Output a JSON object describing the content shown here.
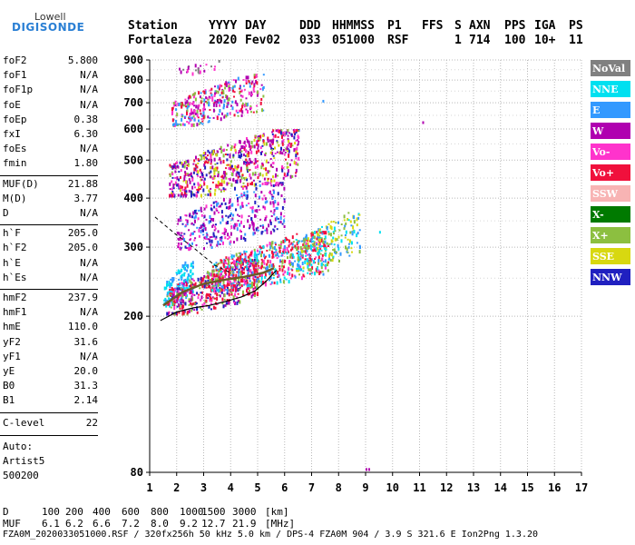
{
  "logo": {
    "line1": "Lowell",
    "line2": "DIGISONDE"
  },
  "header": {
    "row1": [
      "Station",
      "YYYY",
      "DAY",
      "DDD",
      "HHMMSS",
      "P1",
      "FFS",
      "S",
      "AXN",
      "PPS",
      "IGA",
      "PS"
    ],
    "row2": [
      "Fortaleza",
      "2020",
      "Fev02",
      "033",
      "051000",
      "RSF",
      "",
      "1",
      "714",
      "100",
      "10+",
      "11"
    ]
  },
  "params_group1": [
    {
      "name": "foF2",
      "value": "5.800"
    },
    {
      "name": "foF1",
      "value": "N/A"
    },
    {
      "name": "foF1p",
      "value": "N/A"
    },
    {
      "name": "foE",
      "value": "N/A"
    },
    {
      "name": "foEp",
      "value": "0.38"
    },
    {
      "name": "fxI",
      "value": "6.30"
    },
    {
      "name": "foEs",
      "value": "N/A"
    },
    {
      "name": "fmin",
      "value": "1.80"
    }
  ],
  "params_group2": [
    {
      "name": "MUF(D)",
      "value": "21.88"
    },
    {
      "name": "M(D)",
      "value": "3.77"
    },
    {
      "name": "D",
      "value": "N/A"
    }
  ],
  "params_group3": [
    {
      "name": "h`F",
      "value": "205.0"
    },
    {
      "name": "h`F2",
      "value": "205.0"
    },
    {
      "name": "h`E",
      "value": "N/A"
    },
    {
      "name": "h`Es",
      "value": "N/A"
    }
  ],
  "params_group4": [
    {
      "name": "hmF2",
      "value": "237.9"
    },
    {
      "name": "hmF1",
      "value": "N/A"
    },
    {
      "name": "hmE",
      "value": "110.0"
    },
    {
      "name": "yF2",
      "value": "31.6"
    },
    {
      "name": "yF1",
      "value": "N/A"
    },
    {
      "name": "yE",
      "value": "20.0"
    },
    {
      "name": "B0",
      "value": "31.3"
    },
    {
      "name": "B1",
      "value": "2.14"
    }
  ],
  "clevel": {
    "name": "C-level",
    "value": "22"
  },
  "auto": {
    "line1": "Auto:",
    "line2": "Artist5",
    "line3": "500200"
  },
  "legend": [
    {
      "label": "NoVal",
      "color": "#808080",
      "text_color": "#ffffff"
    },
    {
      "label": "NNE",
      "color": "#00e0f0",
      "text_color": "#ffffff"
    },
    {
      "label": "E",
      "color": "#3399ff",
      "text_color": "#ffffff"
    },
    {
      "label": "W",
      "color": "#b000b0",
      "text_color": "#ffffff"
    },
    {
      "label": "Vo-",
      "color": "#ff33cc",
      "text_color": "#ffffff"
    },
    {
      "label": "Vo+",
      "color": "#f0103c",
      "text_color": "#ffffff"
    },
    {
      "label": "SSW",
      "color": "#f8b4b4",
      "text_color": "#ffffff"
    },
    {
      "label": "X-",
      "color": "#007a00",
      "text_color": "#ffffff"
    },
    {
      "label": "X+",
      "color": "#8cbf40",
      "text_color": "#ffffff"
    },
    {
      "label": "SSE",
      "color": "#d8d810",
      "text_color": "#ffffff"
    },
    {
      "label": "NNW",
      "color": "#2020c0",
      "text_color": "#ffffff"
    }
  ],
  "bottom": {
    "d_label": "D",
    "d_values": [
      "100",
      "200",
      "400",
      "600",
      "800",
      "1000",
      "1500",
      "3000",
      "[km]"
    ],
    "muf_label": "MUF",
    "muf_values": [
      "6.1",
      "6.2",
      "6.6",
      "7.2",
      "8.0",
      "9.2",
      "12.7",
      "21.9",
      "[MHz]"
    ],
    "footer": "FZA0M_2020033051000.RSF / 320fx256h 50 kHz 5.0 km / DPS-4 FZA0M 904 / 3.9 S 321.6 E   Ion2Png 1.3.20"
  },
  "chart_data": {
    "type": "scatter",
    "x_ticks": [
      "1",
      "2",
      "3",
      "4",
      "5",
      "6",
      "7",
      "8",
      "9",
      "10",
      "11",
      "12",
      "13",
      "14",
      "15",
      "16",
      "17"
    ],
    "y_ticks": [
      "80",
      "200",
      "300",
      "400",
      "500",
      "600",
      "700",
      "800",
      "900"
    ],
    "xlim": [
      1,
      17
    ],
    "y_scale": "log",
    "ylim": [
      80,
      900
    ],
    "grid": true,
    "legend_placement": "right",
    "clusters": [
      {
        "name": "E",
        "f": [
          1.5,
          2.6
        ],
        "h": [
          215,
          280
        ],
        "n": 140,
        "colors": [
          "#00e0f0",
          "#3399ff"
        ]
      },
      {
        "name": "Vo+",
        "f": [
          1.6,
          5.0
        ],
        "h": [
          205,
          280
        ],
        "n": 460,
        "colors": [
          "#f0103c",
          "#f0103c",
          "#ff33cc",
          "#b000b0",
          "#2020c0",
          "#8cbf40"
        ]
      },
      {
        "name": "Vo+",
        "f": [
          3.2,
          7.6
        ],
        "h": [
          235,
          330
        ],
        "n": 620,
        "colors": [
          "#f0103c",
          "#f0103c",
          "#ff33cc",
          "#3399ff",
          "#00e0f0",
          "#8cbf40"
        ]
      },
      {
        "name": "SSE",
        "f": [
          6.4,
          8.8
        ],
        "h": [
          265,
          370
        ],
        "n": 180,
        "colors": [
          "#d8d810",
          "#8cbf40",
          "#00e0f0",
          "#3399ff"
        ]
      },
      {
        "name": "W",
        "f": [
          2.0,
          6.0
        ],
        "h": [
          300,
          440
        ],
        "n": 360,
        "colors": [
          "#b000b0",
          "#b000b0",
          "#ff33cc",
          "#3399ff",
          "#2020c0"
        ]
      },
      {
        "name": "W",
        "f": [
          1.7,
          6.5
        ],
        "h": [
          410,
          600
        ],
        "n": 620,
        "colors": [
          "#b000b0",
          "#b000b0",
          "#ff33cc",
          "#f0103c",
          "#8cbf40",
          "#d8d810",
          "#2020c0"
        ]
      },
      {
        "name": "W",
        "f": [
          1.8,
          5.2
        ],
        "h": [
          620,
          830
        ],
        "n": 330,
        "colors": [
          "#b000b0",
          "#ff33cc",
          "#f0103c",
          "#8cbf40",
          "#3399ff"
        ]
      },
      {
        "name": "W",
        "f": [
          2.0,
          3.6
        ],
        "h": [
          830,
          900
        ],
        "n": 22,
        "colors": [
          "#b000b0",
          "#ff33cc",
          "#808080"
        ]
      }
    ],
    "isolated_points": [
      {
        "f": 11.1,
        "h": 628,
        "color": "#b000b0"
      },
      {
        "f": 9.0,
        "h": 82,
        "color": "#b000b0"
      },
      {
        "f": 9.1,
        "h": 82,
        "color": "#b000b0"
      },
      {
        "f": 7.4,
        "h": 712,
        "color": "#3399ff"
      },
      {
        "f": 9.5,
        "h": 330,
        "color": "#00e0f0"
      }
    ],
    "profile_curve": {
      "f": [
        1.4,
        2.0,
        2.6,
        3.2,
        3.8,
        4.4,
        4.9,
        5.3,
        5.7
      ],
      "h": [
        195,
        205,
        210,
        213,
        218,
        224,
        232,
        245,
        262
      ]
    },
    "fit_curve": {
      "f": [
        1.5,
        2.2,
        3.0,
        3.8,
        4.5,
        5.2,
        5.6
      ],
      "h": [
        213,
        230,
        242,
        248,
        252,
        258,
        265
      ]
    },
    "dashed_line": {
      "f": [
        1.2,
        2.0,
        2.6,
        3.4,
        4.0
      ],
      "h": [
        358,
        322,
        300,
        270,
        258
      ]
    }
  }
}
